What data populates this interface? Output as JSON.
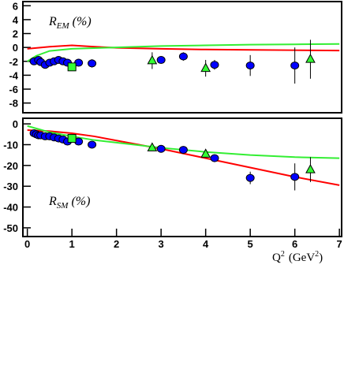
{
  "chart_data": [
    {
      "type": "scatter",
      "ylabel": {
        "main": "R",
        "sub": "EM",
        "unit": "(%)"
      },
      "xlim": [
        -0.1,
        7.05
      ],
      "ylim": [
        -9.4,
        6.6
      ],
      "yticks": [
        -8,
        -6,
        -4,
        -2,
        0,
        2,
        4,
        6
      ],
      "series": [
        {
          "style": "line",
          "color": "#ff0000",
          "x": [
            0,
            0.5,
            1,
            1.5,
            2,
            3,
            4,
            5,
            6,
            7
          ],
          "values": [
            -0.2,
            0.1,
            0.3,
            0.1,
            -0.05,
            -0.2,
            -0.3,
            -0.35,
            -0.4,
            -0.45
          ]
        },
        {
          "style": "line",
          "color": "#33ee33",
          "x": [
            0,
            0.2,
            0.5,
            1,
            1.5,
            2,
            3,
            4,
            5,
            6,
            7
          ],
          "values": [
            -2,
            -1.2,
            -0.5,
            -0.2,
            -0.1,
            0,
            0.2,
            0.3,
            0.4,
            0.45,
            0.5
          ]
        },
        {
          "style": "circle",
          "color": "#0000ff",
          "x": [
            0.15,
            0.25,
            0.3,
            0.4,
            0.5,
            0.6,
            0.7,
            0.8,
            0.9,
            1.15,
            1.45,
            3.0,
            3.5,
            4.2,
            5.0,
            6.0
          ],
          "values": [
            -2,
            -1.8,
            -2.1,
            -2.5,
            -2.2,
            -2.0,
            -1.8,
            -2.0,
            -2.2,
            -2.2,
            -2.3,
            -1.8,
            -1.3,
            -2.5,
            -2.6,
            -2.6
          ],
          "errors": [
            0.3,
            0.3,
            0.4,
            0.4,
            0.3,
            0.3,
            0.3,
            0.3,
            0.4,
            0.5,
            0.6,
            0.5,
            0.6,
            0.7,
            1.5,
            2.6
          ]
        },
        {
          "style": "triangle",
          "color": "#33ff33",
          "x": [
            2.8,
            4.0,
            6.35
          ],
          "values": [
            -1.9,
            -3.0,
            -1.7
          ],
          "errors": [
            1.2,
            1.2,
            2.8
          ]
        },
        {
          "style": "square",
          "color": "#33ff33",
          "x": [
            1.0
          ],
          "values": [
            -2.8
          ],
          "errors": [
            0.3
          ]
        }
      ]
    },
    {
      "type": "scatter",
      "ylabel": {
        "main": "R",
        "sub": "SM",
        "unit": "(%)"
      },
      "xlabel": {
        "main": "Q",
        "sup": "2",
        "unit": "(GeV",
        "unit_sup": "2",
        "close": ")"
      },
      "xlim": [
        -0.1,
        7.05
      ],
      "ylim": [
        -54.2,
        2.7
      ],
      "xticks": [
        0,
        1,
        2,
        3,
        4,
        5,
        6,
        7
      ],
      "yticks": [
        -50,
        -40,
        -30,
        -20,
        -10,
        0
      ],
      "series": [
        {
          "style": "line",
          "color": "#ff0000",
          "x": [
            0,
            0.5,
            1,
            1.5,
            2,
            3,
            4,
            5,
            6,
            7
          ],
          "values": [
            -3,
            -3.5,
            -4.5,
            -6,
            -8,
            -12,
            -16.5,
            -21,
            -25.5,
            -29.5
          ]
        },
        {
          "style": "line",
          "color": "#33ee33",
          "x": [
            0,
            0.5,
            1,
            1.5,
            2,
            3,
            4,
            5,
            6,
            7
          ],
          "values": [
            -1,
            -4,
            -6,
            -7.8,
            -9,
            -11.5,
            -13.5,
            -15,
            -16,
            -16.5
          ]
        },
        {
          "style": "circle",
          "color": "#0000ff",
          "x": [
            0.15,
            0.2,
            0.25,
            0.3,
            0.4,
            0.5,
            0.6,
            0.7,
            0.8,
            0.9,
            1.15,
            1.45,
            3.0,
            3.5,
            4.2,
            5.0,
            6.0
          ],
          "values": [
            -4.5,
            -5,
            -5.5,
            -5.5,
            -6,
            -6,
            -6.5,
            -7,
            -7.5,
            -8.5,
            -8.5,
            -10,
            -12,
            -12.5,
            -16.5,
            -26,
            -25.5
          ],
          "errors": [
            0.5,
            0.5,
            0.5,
            0.5,
            0.5,
            0.5,
            0.5,
            0.5,
            0.6,
            0.6,
            0.7,
            0.8,
            1,
            1,
            1.2,
            3,
            6.5
          ]
        },
        {
          "style": "triangle",
          "color": "#33ff33",
          "x": [
            2.8,
            4.0,
            6.35
          ],
          "values": [
            -11.5,
            -14.5,
            -22
          ],
          "errors": [
            1,
            1.2,
            6
          ]
        },
        {
          "style": "square",
          "color": "#33ff33",
          "x": [
            1.0
          ],
          "values": [
            -7
          ],
          "errors": [
            0.5
          ]
        }
      ]
    }
  ]
}
